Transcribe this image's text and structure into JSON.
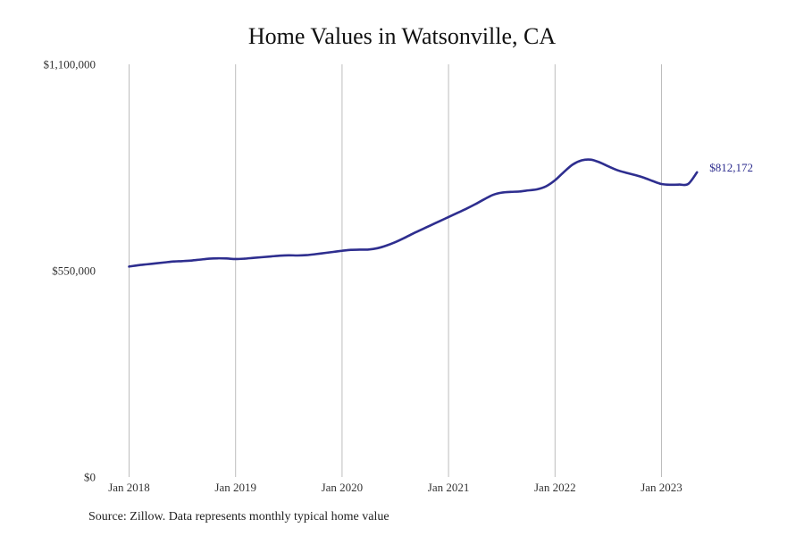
{
  "title": "Home Values in Watsonville, CA",
  "source": "Source: Zillow. Data represents monthly typical home value",
  "colors": {
    "line": "#2e2e8f",
    "grid": "#bdbdbd",
    "label": "#2e2e8f"
  },
  "chart_data": {
    "type": "line",
    "title": "Home Values in Watsonville, CA",
    "xlabel": "",
    "ylabel": "",
    "xlim": [
      "2018-01",
      "2023-10"
    ],
    "ylim": [
      0,
      1100000
    ],
    "y_ticks": [
      0,
      550000,
      1100000
    ],
    "y_tick_labels": [
      "$0",
      "$550,000",
      "$1,100,000"
    ],
    "x_ticks": [
      "2018-01",
      "2019-01",
      "2020-01",
      "2021-01",
      "2022-01",
      "2023-01"
    ],
    "x_tick_labels": [
      "Jan 2018",
      "Jan 2019",
      "Jan 2020",
      "Jan 2021",
      "Jan 2022",
      "Jan 2023"
    ],
    "grid": "vertical",
    "legend": "none",
    "end_label": "$812,172",
    "series": [
      {
        "x": [
          "2018-01",
          "2018-02",
          "2018-03",
          "2018-04",
          "2018-05",
          "2018-06",
          "2018-07",
          "2018-08",
          "2018-09",
          "2018-10",
          "2018-11",
          "2018-12",
          "2019-01",
          "2019-02",
          "2019-03",
          "2019-04",
          "2019-05",
          "2019-06",
          "2019-07",
          "2019-08",
          "2019-09",
          "2019-10",
          "2019-11",
          "2019-12",
          "2020-01",
          "2020-02",
          "2020-03",
          "2020-04",
          "2020-05",
          "2020-06",
          "2020-07",
          "2020-08",
          "2020-09",
          "2020-10",
          "2020-11",
          "2020-12",
          "2021-01",
          "2021-02",
          "2021-03",
          "2021-04",
          "2021-05",
          "2021-06",
          "2021-07",
          "2021-08",
          "2021-09",
          "2021-10",
          "2021-11",
          "2021-12",
          "2022-01",
          "2022-02",
          "2022-03",
          "2022-04",
          "2022-05",
          "2022-06",
          "2022-07",
          "2022-08",
          "2022-09",
          "2022-10",
          "2022-11",
          "2022-12",
          "2023-01",
          "2023-02",
          "2023-03",
          "2023-04",
          "2023-05"
        ],
        "values": [
          561000,
          564500,
          567000,
          569500,
          572000,
          574500,
          575500,
          577000,
          579500,
          582000,
          583000,
          582500,
          581000,
          582000,
          584000,
          586000,
          588000,
          590000,
          591000,
          590500,
          591500,
          594000,
          597000,
          600000,
          603000,
          605500,
          606000,
          606500,
          610000,
          617000,
          626000,
          637000,
          649000,
          660000,
          671000,
          682000,
          693000,
          704000,
          715000,
          727000,
          740000,
          752000,
          758000,
          760000,
          761000,
          764000,
          767000,
          775000,
          791000,
          813000,
          833000,
          844000,
          846000,
          839000,
          828000,
          818000,
          811000,
          805000,
          798000,
          789000,
          781000,
          779000,
          779500,
          781000,
          812172
        ]
      }
    ]
  }
}
